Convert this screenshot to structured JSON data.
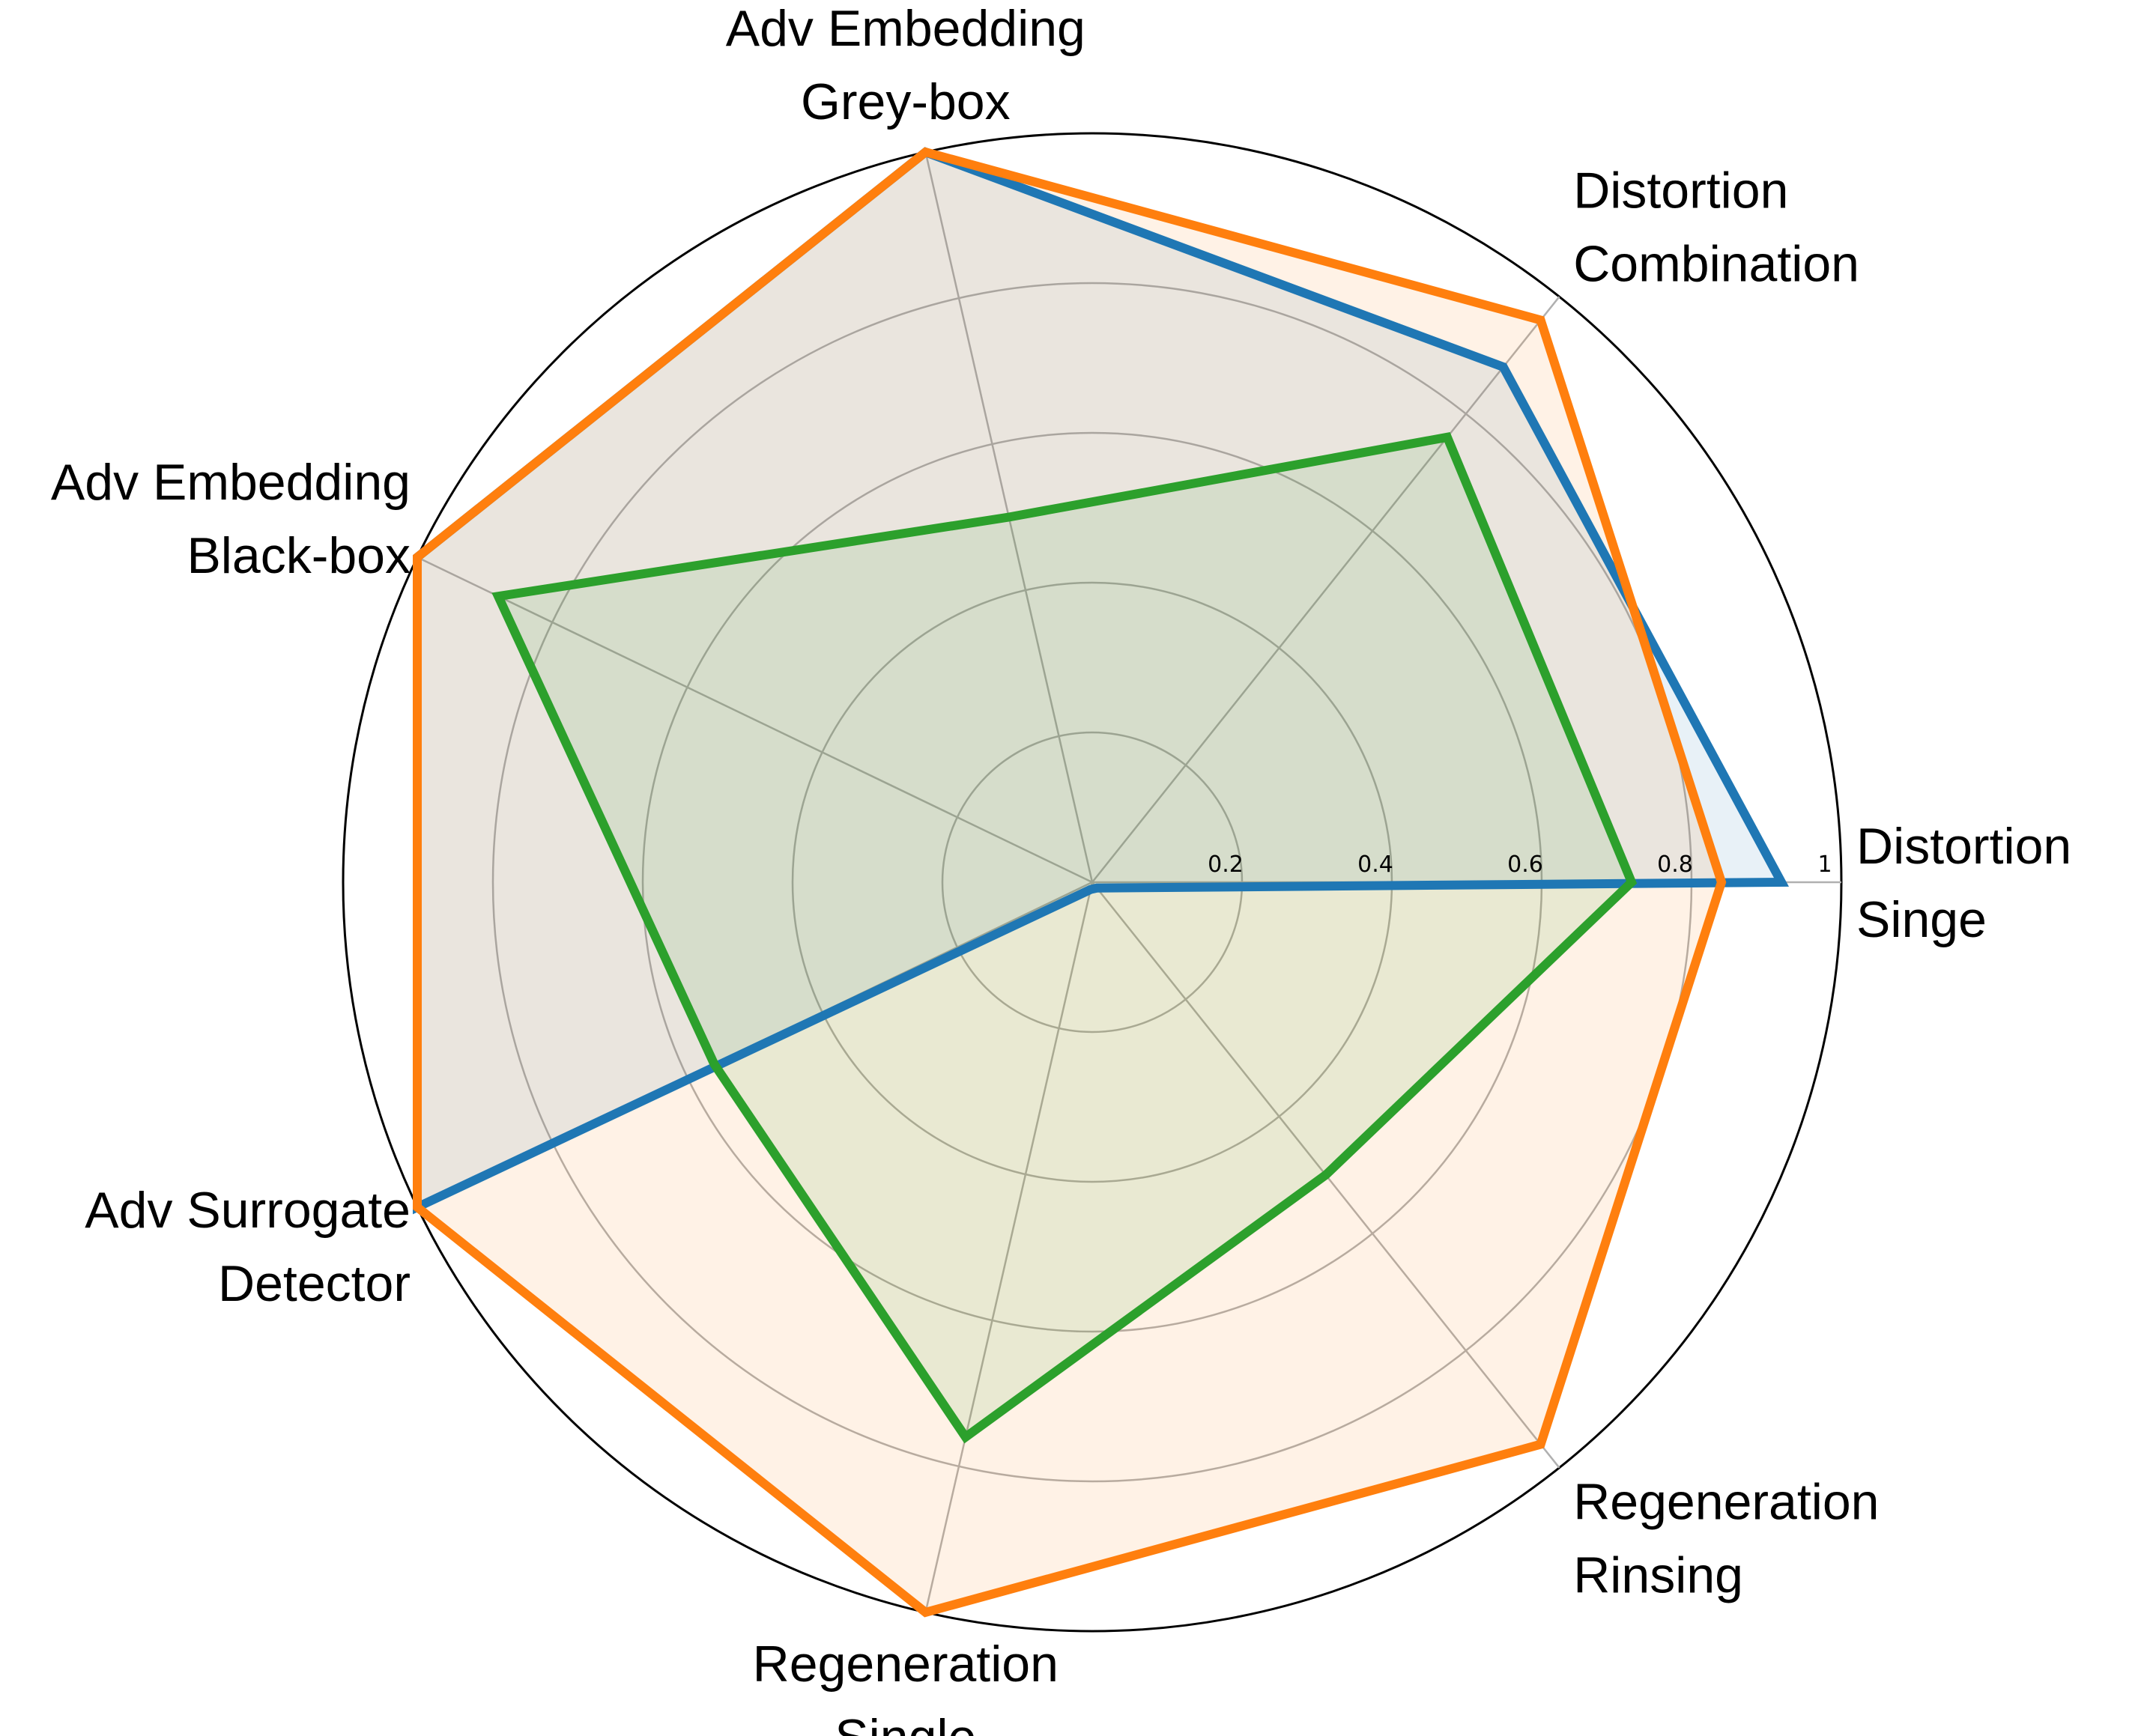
{
  "chart_data": {
    "type": "radar",
    "axes": [
      [
        "Distortion",
        "Singe"
      ],
      [
        "Distortion",
        "Combination"
      ],
      [
        "Adv Embedding",
        "Grey-box"
      ],
      [
        "Adv Embedding",
        "Black-box"
      ],
      [
        "Adv Surrogate",
        "Detector"
      ],
      [
        "Regeneration",
        "Single"
      ],
      [
        "Regeneration",
        "Rinsing"
      ]
    ],
    "rlim": [
      0,
      1
    ],
    "rticks": [
      0.2,
      0.4,
      0.6,
      0.8,
      1.0
    ],
    "rtick_labels": [
      "0.2",
      "0.4",
      "0.6",
      "0.8",
      "1"
    ],
    "grid": true,
    "legend": "none",
    "series": [
      {
        "color": "#1f77b4",
        "values": [
          0.92,
          0.88,
          1.0,
          1.0,
          1.0,
          0.01,
          0.01
        ]
      },
      {
        "color": "#ff7f0e",
        "values": [
          0.84,
          0.96,
          1.0,
          1.0,
          1.0,
          1.0,
          0.96
        ]
      },
      {
        "color": "#2ca02c",
        "values": [
          0.72,
          0.76,
          0.5,
          0.88,
          0.56,
          0.76,
          0.5
        ]
      }
    ],
    "fill_opacity": 0.1
  }
}
